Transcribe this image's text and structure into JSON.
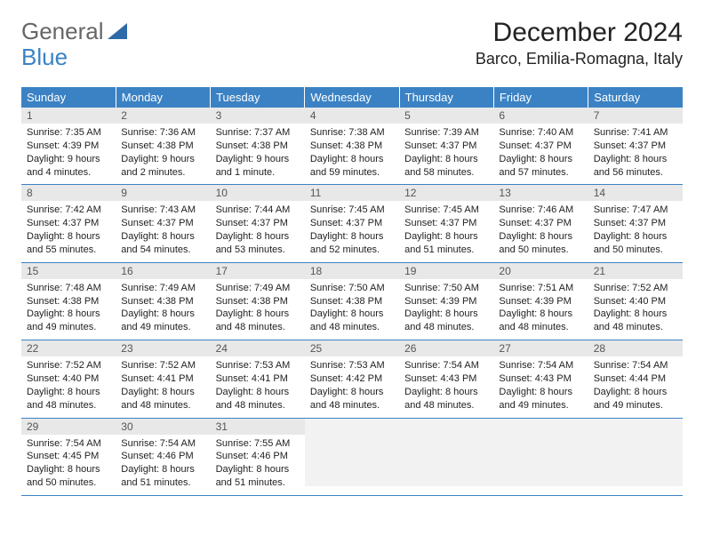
{
  "brand": {
    "word1": "General",
    "word2": "Blue"
  },
  "title": "December 2024",
  "location": "Barco, Emilia-Romagna, Italy",
  "colors": {
    "header_bg": "#3b82c4",
    "header_text": "#ffffff",
    "daynum_bg": "#e8e8e8",
    "border": "#3b82c4",
    "brand_gray": "#666666",
    "brand_blue": "#3b82c4"
  },
  "weekdays": [
    "Sunday",
    "Monday",
    "Tuesday",
    "Wednesday",
    "Thursday",
    "Friday",
    "Saturday"
  ],
  "days": [
    {
      "n": "1",
      "sr": "7:35 AM",
      "ss": "4:39 PM",
      "dl": "9 hours and 4 minutes."
    },
    {
      "n": "2",
      "sr": "7:36 AM",
      "ss": "4:38 PM",
      "dl": "9 hours and 2 minutes."
    },
    {
      "n": "3",
      "sr": "7:37 AM",
      "ss": "4:38 PM",
      "dl": "9 hours and 1 minute."
    },
    {
      "n": "4",
      "sr": "7:38 AM",
      "ss": "4:38 PM",
      "dl": "8 hours and 59 minutes."
    },
    {
      "n": "5",
      "sr": "7:39 AM",
      "ss": "4:37 PM",
      "dl": "8 hours and 58 minutes."
    },
    {
      "n": "6",
      "sr": "7:40 AM",
      "ss": "4:37 PM",
      "dl": "8 hours and 57 minutes."
    },
    {
      "n": "7",
      "sr": "7:41 AM",
      "ss": "4:37 PM",
      "dl": "8 hours and 56 minutes."
    },
    {
      "n": "8",
      "sr": "7:42 AM",
      "ss": "4:37 PM",
      "dl": "8 hours and 55 minutes."
    },
    {
      "n": "9",
      "sr": "7:43 AM",
      "ss": "4:37 PM",
      "dl": "8 hours and 54 minutes."
    },
    {
      "n": "10",
      "sr": "7:44 AM",
      "ss": "4:37 PM",
      "dl": "8 hours and 53 minutes."
    },
    {
      "n": "11",
      "sr": "7:45 AM",
      "ss": "4:37 PM",
      "dl": "8 hours and 52 minutes."
    },
    {
      "n": "12",
      "sr": "7:45 AM",
      "ss": "4:37 PM",
      "dl": "8 hours and 51 minutes."
    },
    {
      "n": "13",
      "sr": "7:46 AM",
      "ss": "4:37 PM",
      "dl": "8 hours and 50 minutes."
    },
    {
      "n": "14",
      "sr": "7:47 AM",
      "ss": "4:37 PM",
      "dl": "8 hours and 50 minutes."
    },
    {
      "n": "15",
      "sr": "7:48 AM",
      "ss": "4:38 PM",
      "dl": "8 hours and 49 minutes."
    },
    {
      "n": "16",
      "sr": "7:49 AM",
      "ss": "4:38 PM",
      "dl": "8 hours and 49 minutes."
    },
    {
      "n": "17",
      "sr": "7:49 AM",
      "ss": "4:38 PM",
      "dl": "8 hours and 48 minutes."
    },
    {
      "n": "18",
      "sr": "7:50 AM",
      "ss": "4:38 PM",
      "dl": "8 hours and 48 minutes."
    },
    {
      "n": "19",
      "sr": "7:50 AM",
      "ss": "4:39 PM",
      "dl": "8 hours and 48 minutes."
    },
    {
      "n": "20",
      "sr": "7:51 AM",
      "ss": "4:39 PM",
      "dl": "8 hours and 48 minutes."
    },
    {
      "n": "21",
      "sr": "7:52 AM",
      "ss": "4:40 PM",
      "dl": "8 hours and 48 minutes."
    },
    {
      "n": "22",
      "sr": "7:52 AM",
      "ss": "4:40 PM",
      "dl": "8 hours and 48 minutes."
    },
    {
      "n": "23",
      "sr": "7:52 AM",
      "ss": "4:41 PM",
      "dl": "8 hours and 48 minutes."
    },
    {
      "n": "24",
      "sr": "7:53 AM",
      "ss": "4:41 PM",
      "dl": "8 hours and 48 minutes."
    },
    {
      "n": "25",
      "sr": "7:53 AM",
      "ss": "4:42 PM",
      "dl": "8 hours and 48 minutes."
    },
    {
      "n": "26",
      "sr": "7:54 AM",
      "ss": "4:43 PM",
      "dl": "8 hours and 48 minutes."
    },
    {
      "n": "27",
      "sr": "7:54 AM",
      "ss": "4:43 PM",
      "dl": "8 hours and 49 minutes."
    },
    {
      "n": "28",
      "sr": "7:54 AM",
      "ss": "4:44 PM",
      "dl": "8 hours and 49 minutes."
    },
    {
      "n": "29",
      "sr": "7:54 AM",
      "ss": "4:45 PM",
      "dl": "8 hours and 50 minutes."
    },
    {
      "n": "30",
      "sr": "7:54 AM",
      "ss": "4:46 PM",
      "dl": "8 hours and 51 minutes."
    },
    {
      "n": "31",
      "sr": "7:55 AM",
      "ss": "4:46 PM",
      "dl": "8 hours and 51 minutes."
    }
  ],
  "labels": {
    "sunrise": "Sunrise:",
    "sunset": "Sunset:",
    "daylight": "Daylight:"
  }
}
